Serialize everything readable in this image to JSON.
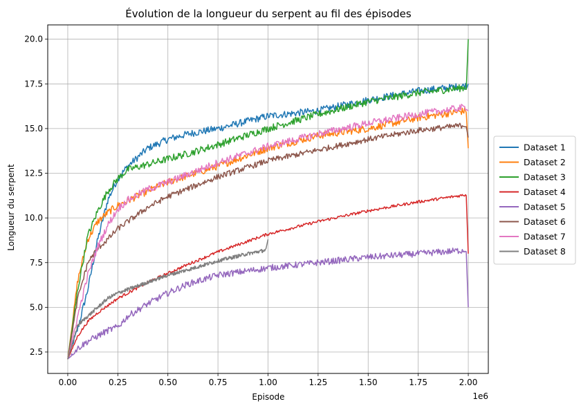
{
  "chart_data": {
    "type": "line",
    "title": "Évolution de la longueur du serpent au fil des épisodes",
    "xlabel": "Episode",
    "ylabel": "Longueur du serpent",
    "x_offset_label": "1e6",
    "xlim": [
      -0.1,
      2.1
    ],
    "ylim": [
      1.3,
      20.8
    ],
    "x_scale_multiplier": 1000000,
    "xticks": [
      0.0,
      0.25,
      0.5,
      0.75,
      1.0,
      1.25,
      1.5,
      1.75,
      2.0
    ],
    "xtick_labels": [
      "0.00",
      "0.25",
      "0.50",
      "0.75",
      "1.00",
      "1.25",
      "1.50",
      "1.75",
      "2.00"
    ],
    "yticks": [
      2.5,
      5.0,
      7.5,
      10.0,
      12.5,
      15.0,
      17.5,
      20.0
    ],
    "ytick_labels": [
      "2.5",
      "5.0",
      "7.5",
      "10.0",
      "12.5",
      "15.0",
      "17.5",
      "20.0"
    ],
    "grid": true,
    "legend_position": "right, outside plot",
    "series": [
      {
        "name": "Dataset 1",
        "color": "#1f77b4",
        "x": [
          0,
          0.05,
          0.1,
          0.15,
          0.2,
          0.25,
          0.3,
          0.4,
          0.5,
          0.6,
          0.75,
          1.0,
          1.25,
          1.5,
          1.75,
          1.99,
          2.0
        ],
        "y": [
          2.1,
          3.8,
          6.0,
          8.8,
          11.0,
          12.2,
          12.9,
          13.9,
          14.4,
          14.7,
          15.0,
          15.7,
          16.0,
          16.6,
          17.1,
          17.4,
          17.5
        ],
        "noise": 0.2
      },
      {
        "name": "Dataset 2",
        "color": "#ff7f0e",
        "x": [
          0,
          0.05,
          0.1,
          0.15,
          0.2,
          0.25,
          0.4,
          0.5,
          0.75,
          1.0,
          1.25,
          1.5,
          1.75,
          1.99,
          2.0
        ],
        "y": [
          2.1,
          6.5,
          8.8,
          9.8,
          10.3,
          10.7,
          11.5,
          12.0,
          12.9,
          13.9,
          14.6,
          15.0,
          15.6,
          16.0,
          13.9
        ],
        "noise": 0.2
      },
      {
        "name": "Dataset 3",
        "color": "#2ca02c",
        "x": [
          0,
          0.05,
          0.1,
          0.15,
          0.2,
          0.25,
          0.3,
          0.4,
          0.5,
          0.6,
          0.75,
          1.0,
          1.25,
          1.5,
          1.75,
          1.99,
          2.0
        ],
        "y": [
          2.1,
          6.0,
          9.0,
          10.4,
          11.5,
          12.2,
          12.7,
          13.0,
          13.3,
          13.6,
          14.1,
          15.0,
          15.8,
          16.5,
          17.0,
          17.3,
          20.0
        ],
        "noise": 0.2
      },
      {
        "name": "Dataset 4",
        "color": "#d62728",
        "x": [
          0,
          0.05,
          0.1,
          0.15,
          0.2,
          0.25,
          0.3,
          0.4,
          0.5,
          0.6,
          0.75,
          1.0,
          1.25,
          1.5,
          1.75,
          1.99,
          2.0
        ],
        "y": [
          2.1,
          3.4,
          4.2,
          4.7,
          5.1,
          5.5,
          5.8,
          6.4,
          6.9,
          7.4,
          8.1,
          9.1,
          9.8,
          10.4,
          10.9,
          11.3,
          8.0
        ],
        "noise": 0.08
      },
      {
        "name": "Dataset 5",
        "color": "#9467bd",
        "x": [
          0,
          0.05,
          0.1,
          0.15,
          0.2,
          0.25,
          0.3,
          0.4,
          0.5,
          0.6,
          0.75,
          1.0,
          1.25,
          1.5,
          1.75,
          1.99,
          2.0
        ],
        "y": [
          2.1,
          2.7,
          3.1,
          3.4,
          3.7,
          3.9,
          4.5,
          5.2,
          5.8,
          6.3,
          6.8,
          7.2,
          7.5,
          7.8,
          8.0,
          8.2,
          5.0
        ],
        "noise": 0.18
      },
      {
        "name": "Dataset 6",
        "color": "#8c564b",
        "x": [
          0,
          0.05,
          0.1,
          0.15,
          0.2,
          0.25,
          0.3,
          0.4,
          0.5,
          0.75,
          1.0,
          1.25,
          1.5,
          1.75,
          1.99,
          2.0
        ],
        "y": [
          2.1,
          5.5,
          7.5,
          8.3,
          8.8,
          9.4,
          9.8,
          10.6,
          11.2,
          12.3,
          13.2,
          13.8,
          14.4,
          14.9,
          15.2,
          14.5
        ],
        "noise": 0.16
      },
      {
        "name": "Dataset 7",
        "color": "#e377c2",
        "x": [
          0,
          0.05,
          0.1,
          0.15,
          0.2,
          0.25,
          0.3,
          0.4,
          0.5,
          0.75,
          1.0,
          1.25,
          1.5,
          1.75,
          1.99,
          2.0
        ],
        "y": [
          2.1,
          4.5,
          6.8,
          8.4,
          9.6,
          10.5,
          11.0,
          11.6,
          12.0,
          13.1,
          14.0,
          14.7,
          15.3,
          15.8,
          16.2,
          16.0
        ],
        "noise": 0.2
      },
      {
        "name": "Dataset 8",
        "color": "#7f7f7f",
        "x": [
          0,
          0.05,
          0.1,
          0.15,
          0.2,
          0.25,
          0.3,
          0.4,
          0.5,
          0.6,
          0.75,
          0.9,
          0.99,
          1.0
        ],
        "y": [
          2.1,
          4.0,
          4.5,
          5.0,
          5.5,
          5.8,
          6.0,
          6.4,
          6.8,
          7.1,
          7.6,
          8.0,
          8.2,
          8.8
        ],
        "noise": 0.1
      }
    ]
  }
}
